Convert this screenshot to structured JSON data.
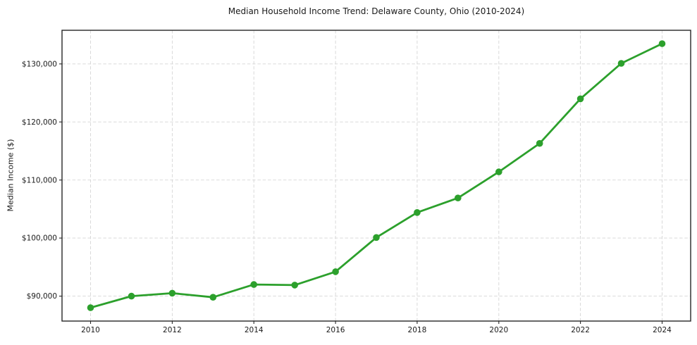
{
  "chart_data": {
    "type": "line",
    "title": "Median Household Income Trend: Delaware County, Ohio (2010-2024)",
    "xlabel": "",
    "ylabel": "Median Income ($)",
    "x": [
      2010,
      2011,
      2012,
      2013,
      2014,
      2015,
      2016,
      2017,
      2018,
      2019,
      2020,
      2021,
      2022,
      2023,
      2024
    ],
    "values": [
      88000,
      90000,
      90500,
      89800,
      92000,
      91900,
      94200,
      100100,
      104400,
      106900,
      111400,
      116300,
      124000,
      130100,
      133500
    ],
    "x_ticks": [
      2010,
      2012,
      2014,
      2016,
      2018,
      2020,
      2022,
      2024
    ],
    "x_tick_labels": [
      "2010",
      "2012",
      "2014",
      "2016",
      "2018",
      "2020",
      "2022",
      "2024"
    ],
    "y_ticks": [
      90000,
      100000,
      110000,
      120000,
      130000
    ],
    "y_tick_labels": [
      "$90,000",
      "$100,000",
      "$110,000",
      "$120,000",
      "$130,000"
    ],
    "xlim": [
      2009.3,
      2024.7
    ],
    "ylim": [
      85700,
      135800
    ],
    "grid": true,
    "legend": "none",
    "line_color": "#2ca02c",
    "marker": "circle",
    "background": "#ffffff"
  }
}
